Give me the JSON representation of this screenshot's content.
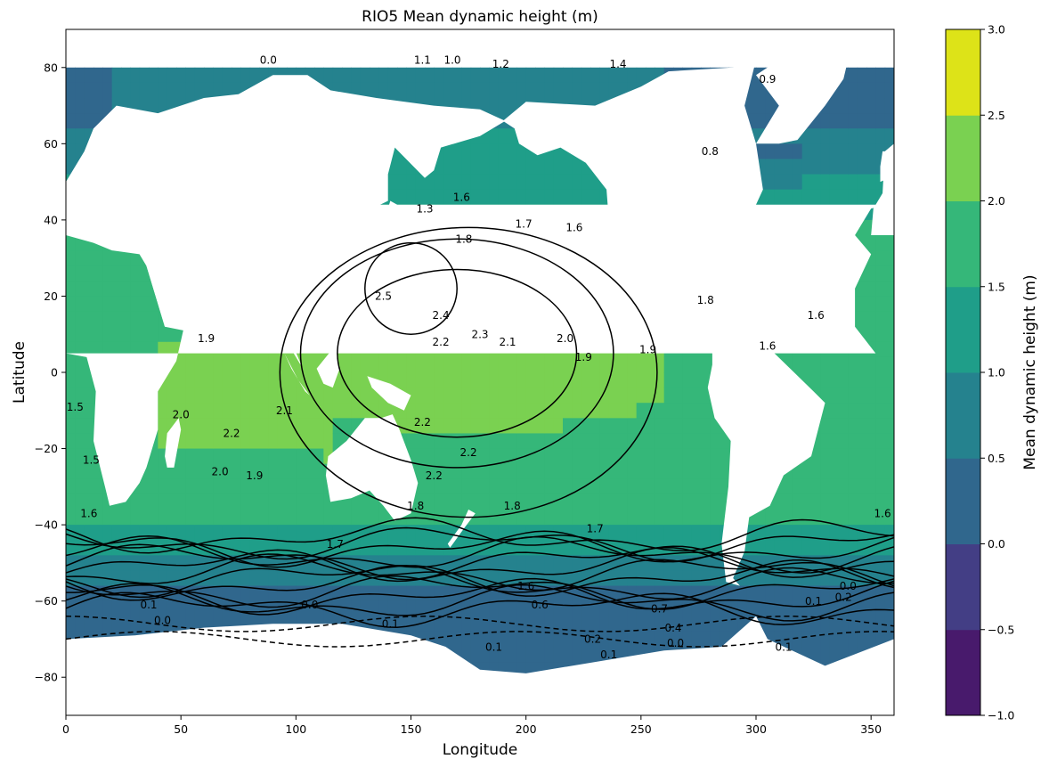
{
  "chart_data": {
    "type": "heatmap",
    "title": "RIO5 Mean dynamic height (m)",
    "xlabel": "Longitude",
    "ylabel": "Latitude",
    "xlim": [
      0,
      360
    ],
    "ylim": [
      -90,
      90
    ],
    "xticks": [
      0,
      50,
      100,
      150,
      200,
      250,
      300,
      350
    ],
    "yticks": [
      -80,
      -60,
      -40,
      -20,
      0,
      20,
      40,
      60,
      80
    ],
    "grid": false,
    "land_color": "#ffffff",
    "colorbar": {
      "label": "Mean dynamic height (m)",
      "levels": [
        -1.0,
        -0.5,
        0.0,
        0.5,
        1.0,
        1.5,
        2.0,
        2.5,
        3.0
      ],
      "tick_labels": [
        "−1.0",
        "−0.5",
        "0.0",
        "0.5",
        "1.0",
        "1.5",
        "2.0",
        "2.5",
        "3.0"
      ],
      "colors": [
        "#481a6c",
        "#433e85",
        "#30678d",
        "#25828e",
        "#1f9e89",
        "#35b779",
        "#7ad151",
        "#dde318"
      ]
    },
    "contour_interval": 0.1,
    "contour_labels": [
      {
        "lon": 138,
        "lat": 19,
        "text": "2.5"
      },
      {
        "lon": 163,
        "lat": 14,
        "text": "2.4"
      },
      {
        "lon": 180,
        "lat": 9,
        "text": "2.3"
      },
      {
        "lon": 163,
        "lat": 7,
        "text": "2.2"
      },
      {
        "lon": 192,
        "lat": 7,
        "text": "2.1"
      },
      {
        "lon": 217,
        "lat": 8,
        "text": "2.0"
      },
      {
        "lon": 225,
        "lat": 3,
        "text": "1.9"
      },
      {
        "lon": 253,
        "lat": 5,
        "text": "1.9"
      },
      {
        "lon": 61,
        "lat": 8,
        "text": "1.9"
      },
      {
        "lon": 155,
        "lat": -14,
        "text": "2.2"
      },
      {
        "lon": 175,
        "lat": -22,
        "text": "2.2"
      },
      {
        "lon": 160,
        "lat": -28,
        "text": "2.2"
      },
      {
        "lon": 95,
        "lat": -11,
        "text": "2.1"
      },
      {
        "lon": 50,
        "lat": -12,
        "text": "2.0"
      },
      {
        "lon": 72,
        "lat": -17,
        "text": "2.2"
      },
      {
        "lon": 67,
        "lat": -27,
        "text": "2.0"
      },
      {
        "lon": 82,
        "lat": -28,
        "text": "1.9"
      },
      {
        "lon": 194,
        "lat": -36,
        "text": "1.8"
      },
      {
        "lon": 152,
        "lat": -36,
        "text": "1.8"
      },
      {
        "lon": 221,
        "lat": 37,
        "text": "1.6"
      },
      {
        "lon": 199,
        "lat": 38,
        "text": "1.7"
      },
      {
        "lon": 172,
        "lat": 45,
        "text": "1.6"
      },
      {
        "lon": 156,
        "lat": 42,
        "text": "1.3"
      },
      {
        "lon": 173,
        "lat": 34,
        "text": "1.8"
      },
      {
        "lon": 278,
        "lat": 18,
        "text": "1.8"
      },
      {
        "lon": 305,
        "lat": 6,
        "text": "1.6"
      },
      {
        "lon": 326,
        "lat": 14,
        "text": "1.6"
      },
      {
        "lon": 155,
        "lat": 81,
        "text": "1.1"
      },
      {
        "lon": 168,
        "lat": 81,
        "text": "1.0"
      },
      {
        "lon": 189,
        "lat": 80,
        "text": "1.2"
      },
      {
        "lon": 240,
        "lat": 80,
        "text": "1.4"
      },
      {
        "lon": 88,
        "lat": 81,
        "text": "0.0"
      },
      {
        "lon": 280,
        "lat": 57,
        "text": "0.8"
      },
      {
        "lon": 305,
        "lat": 76,
        "text": "0.9"
      },
      {
        "lon": 206,
        "lat": -62,
        "text": "0.6"
      },
      {
        "lon": 258,
        "lat": -63,
        "text": "0.7"
      },
      {
        "lon": 264,
        "lat": -68,
        "text": "0.4"
      },
      {
        "lon": 229,
        "lat": -71,
        "text": "0.2"
      },
      {
        "lon": 186,
        "lat": -73,
        "text": "0.1"
      },
      {
        "lon": 141,
        "lat": -67,
        "text": "0.1"
      },
      {
        "lon": 106,
        "lat": -62,
        "text": "0.0"
      },
      {
        "lon": 36,
        "lat": -62,
        "text": "0.1"
      },
      {
        "lon": 42,
        "lat": -66,
        "text": "0.0"
      },
      {
        "lon": 236,
        "lat": -75,
        "text": "0.1"
      },
      {
        "lon": 265,
        "lat": -72,
        "text": "0.0"
      },
      {
        "lon": 338,
        "lat": -60,
        "text": "0.2"
      },
      {
        "lon": 340,
        "lat": -57,
        "text": "0.0"
      },
      {
        "lon": 325,
        "lat": -61,
        "text": "0.1"
      },
      {
        "lon": 200,
        "lat": -57,
        "text": "1.6"
      },
      {
        "lon": 230,
        "lat": -42,
        "text": "1.7"
      },
      {
        "lon": 117,
        "lat": -46,
        "text": "1.7"
      },
      {
        "lon": 10,
        "lat": -38,
        "text": "1.6"
      },
      {
        "lon": 355,
        "lat": -38,
        "text": "1.6"
      },
      {
        "lon": 4,
        "lat": -10,
        "text": "1.5"
      },
      {
        "lon": 11,
        "lat": -24,
        "text": "1.5"
      },
      {
        "lon": 312,
        "lat": -73,
        "text": "0.1"
      }
    ]
  }
}
